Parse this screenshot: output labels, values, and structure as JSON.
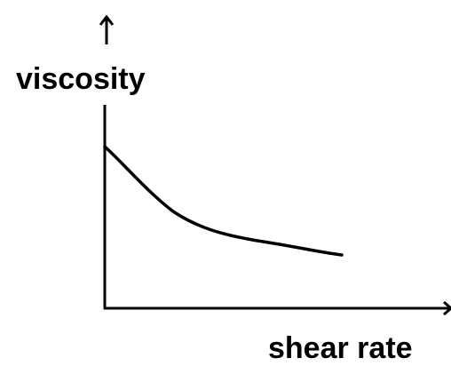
{
  "labels": {
    "y_axis": "viscosity",
    "x_axis": "shear rate"
  }
}
